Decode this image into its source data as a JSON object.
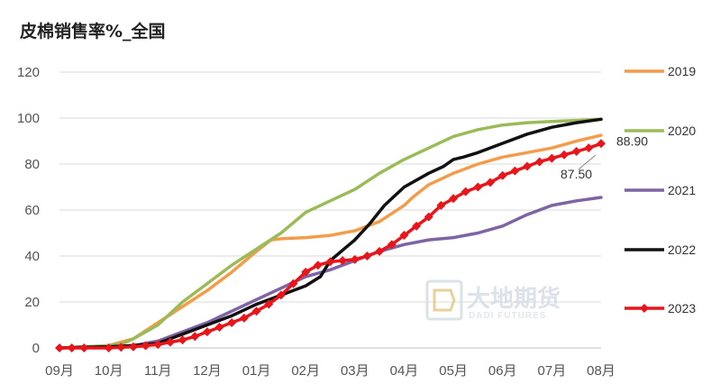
{
  "chart_data": {
    "type": "line",
    "title": "皮棉销售率%_全国",
    "xlabel": "",
    "ylabel": "",
    "x_ticks": [
      "09月",
      "10月",
      "11月",
      "12月",
      "01月",
      "02月",
      "03月",
      "04月",
      "05月",
      "06月",
      "07月",
      "08月"
    ],
    "x_range": [
      0,
      11
    ],
    "ylim": [
      0,
      120
    ],
    "y_ticks": [
      0,
      20,
      40,
      60,
      80,
      100,
      120
    ],
    "grid": "horizontal",
    "legend_position": "right",
    "series": [
      {
        "name": "2019",
        "color": "#f39c4c",
        "marker": "none",
        "points": [
          [
            0,
            0
          ],
          [
            0.5,
            0.5
          ],
          [
            1,
            1
          ],
          [
            1.5,
            4
          ],
          [
            2,
            11
          ],
          [
            2.5,
            18
          ],
          [
            3,
            25
          ],
          [
            3.5,
            33
          ],
          [
            4,
            42
          ],
          [
            4.3,
            47
          ],
          [
            4.5,
            47.5
          ],
          [
            5,
            48
          ],
          [
            5.5,
            49
          ],
          [
            6,
            51
          ],
          [
            6.5,
            55
          ],
          [
            7,
            62
          ],
          [
            7.2,
            66
          ],
          [
            7.5,
            71
          ],
          [
            8,
            76
          ],
          [
            8.5,
            80
          ],
          [
            9,
            83
          ],
          [
            9.5,
            85
          ],
          [
            10,
            87
          ],
          [
            10.5,
            90
          ],
          [
            11,
            92.5
          ]
        ]
      },
      {
        "name": "2020",
        "color": "#9bbb59",
        "marker": "none",
        "points": [
          [
            0,
            0
          ],
          [
            0.5,
            0.5
          ],
          [
            1,
            1
          ],
          [
            1.3,
            2
          ],
          [
            1.5,
            4
          ],
          [
            2,
            10
          ],
          [
            2.5,
            20
          ],
          [
            3,
            28
          ],
          [
            3.5,
            36
          ],
          [
            4,
            43
          ],
          [
            4.5,
            50
          ],
          [
            5,
            59
          ],
          [
            5.5,
            64
          ],
          [
            6,
            69
          ],
          [
            6.5,
            76
          ],
          [
            7,
            82
          ],
          [
            7.5,
            87
          ],
          [
            8,
            92
          ],
          [
            8.5,
            95
          ],
          [
            9,
            97
          ],
          [
            9.5,
            98
          ],
          [
            10,
            98.5
          ],
          [
            10.5,
            99
          ],
          [
            11,
            99.5
          ]
        ]
      },
      {
        "name": "2021",
        "color": "#7e64a2",
        "marker": "none",
        "points": [
          [
            0,
            0
          ],
          [
            0.5,
            0.3
          ],
          [
            1,
            0.5
          ],
          [
            1.5,
            1
          ],
          [
            2,
            3
          ],
          [
            2.5,
            7
          ],
          [
            3,
            11
          ],
          [
            3.5,
            16
          ],
          [
            4,
            21
          ],
          [
            4.5,
            26
          ],
          [
            5,
            31
          ],
          [
            5.5,
            34
          ],
          [
            6,
            38
          ],
          [
            6.5,
            42
          ],
          [
            7,
            45
          ],
          [
            7.5,
            47
          ],
          [
            8,
            48
          ],
          [
            8.5,
            50
          ],
          [
            9,
            53
          ],
          [
            9.5,
            58
          ],
          [
            10,
            62
          ],
          [
            10.5,
            64
          ],
          [
            11,
            65.5
          ]
        ]
      },
      {
        "name": "2022",
        "color": "#111111",
        "marker": "none",
        "points": [
          [
            0,
            0
          ],
          [
            0.5,
            0.3
          ],
          [
            1,
            0.5
          ],
          [
            1.5,
            1
          ],
          [
            2,
            2
          ],
          [
            2.5,
            6
          ],
          [
            3,
            10
          ],
          [
            3.5,
            14
          ],
          [
            4,
            19
          ],
          [
            4.5,
            23
          ],
          [
            5,
            27
          ],
          [
            5.3,
            31
          ],
          [
            5.5,
            38
          ],
          [
            6,
            47
          ],
          [
            6.3,
            54
          ],
          [
            6.6,
            62
          ],
          [
            7,
            70
          ],
          [
            7.5,
            76
          ],
          [
            7.8,
            79
          ],
          [
            8,
            82
          ],
          [
            8.2,
            83
          ],
          [
            8.5,
            85
          ],
          [
            9,
            89
          ],
          [
            9.5,
            93
          ],
          [
            10,
            96
          ],
          [
            10.5,
            98
          ],
          [
            11,
            99.5
          ]
        ]
      },
      {
        "name": "2023",
        "color": "#e8161b",
        "marker": "diamond",
        "points": [
          [
            0,
            0
          ],
          [
            0.25,
            0
          ],
          [
            0.5,
            0
          ],
          [
            1,
            0
          ],
          [
            1.25,
            0.3
          ],
          [
            1.5,
            0.5
          ],
          [
            1.75,
            1
          ],
          [
            2,
            1.5
          ],
          [
            2.25,
            2.5
          ],
          [
            2.5,
            3.5
          ],
          [
            2.75,
            5
          ],
          [
            3,
            7
          ],
          [
            3.25,
            9
          ],
          [
            3.5,
            11
          ],
          [
            3.75,
            13
          ],
          [
            4,
            16
          ],
          [
            4.25,
            19
          ],
          [
            4.5,
            23
          ],
          [
            4.75,
            28
          ],
          [
            5,
            33
          ],
          [
            5.25,
            36
          ],
          [
            5.5,
            37.5
          ],
          [
            5.75,
            38
          ],
          [
            6,
            38.5
          ],
          [
            6.25,
            40
          ],
          [
            6.5,
            42
          ],
          [
            6.75,
            45
          ],
          [
            7,
            49
          ],
          [
            7.25,
            53
          ],
          [
            7.5,
            57
          ],
          [
            7.75,
            62
          ],
          [
            8,
            65
          ],
          [
            8.25,
            68
          ],
          [
            8.5,
            70
          ],
          [
            8.75,
            72
          ],
          [
            9,
            75
          ],
          [
            9.25,
            77
          ],
          [
            9.5,
            79
          ],
          [
            9.75,
            81
          ],
          [
            10,
            82.5
          ],
          [
            10.25,
            84
          ],
          [
            10.5,
            85.5
          ],
          [
            10.75,
            87
          ],
          [
            11,
            88.9
          ]
        ]
      }
    ],
    "annotations": [
      {
        "text": "88.90",
        "x": 11,
        "y": 88.9
      },
      {
        "text": "87.50",
        "x": 10.5,
        "y": 87.5
      }
    ]
  },
  "watermark": {
    "brand_cn": "大地期货",
    "brand_en": "DADI FUTURES",
    "color": "#d6dde6"
  }
}
